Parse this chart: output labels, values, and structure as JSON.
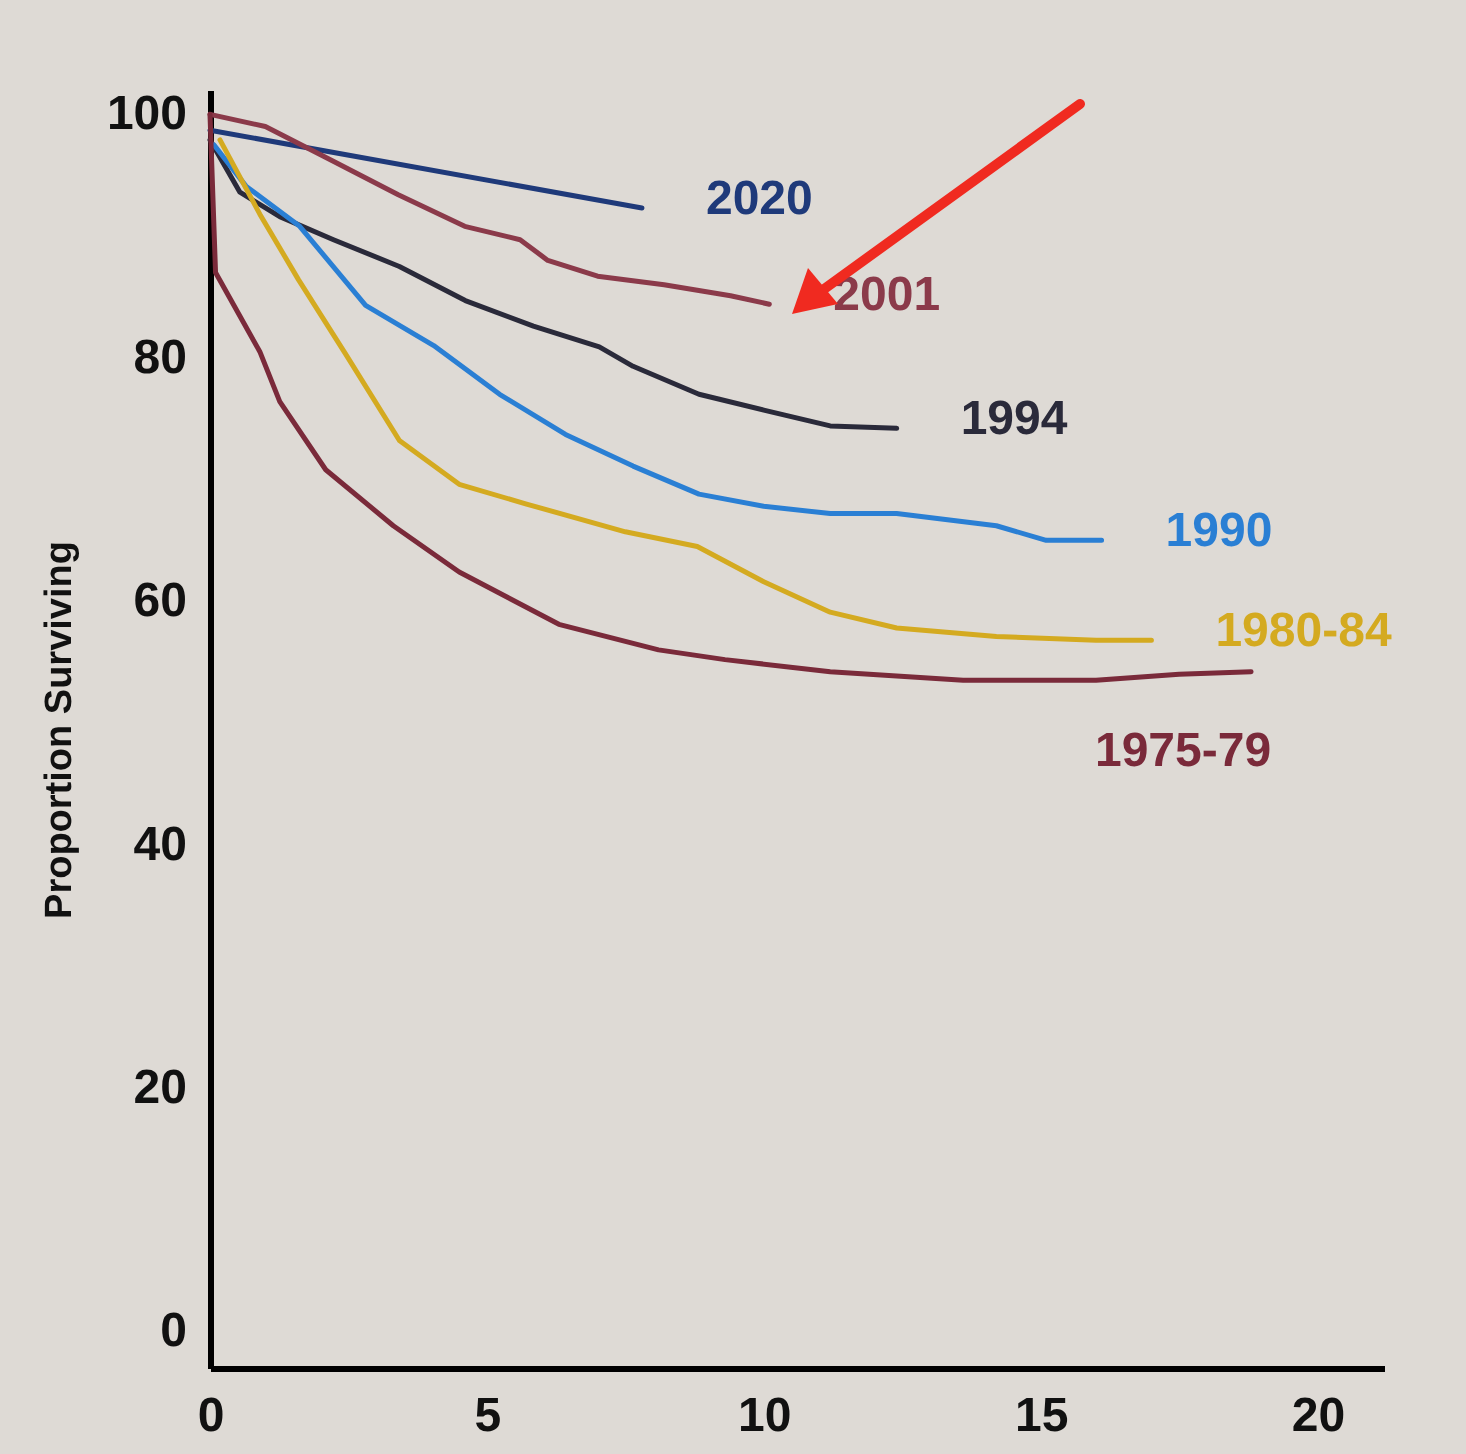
{
  "chart_data": {
    "type": "line",
    "ylabel": "Proportion Surviving",
    "xlim": [
      0,
      21.2
    ],
    "ylim": [
      -3,
      102
    ],
    "xticks": [
      0,
      5,
      10,
      15,
      20
    ],
    "yticks": [
      0,
      20,
      40,
      60,
      80,
      100
    ],
    "grid": false,
    "series": [
      {
        "name": "2020",
        "color": "#1f3a7a",
        "x": [
          0,
          7.8
        ],
        "values": [
          98.7,
          92.3
        ]
      },
      {
        "name": "2001",
        "color": "#8b3a4a",
        "x": [
          0,
          1.0,
          2.2,
          3.4,
          4.6,
          5.6,
          6.1,
          7.0,
          8.2,
          9.4,
          10.1
        ],
        "values": [
          100,
          99.0,
          96.2,
          93.4,
          90.8,
          89.7,
          88.0,
          86.7,
          86.0,
          85.1,
          84.4
        ]
      },
      {
        "name": "1994",
        "color": "#2a2a3a",
        "x": [
          0,
          0.54,
          1.26,
          2.23,
          3.42,
          4.61,
          5.84,
          7.03,
          7.64,
          8.83,
          10.0,
          11.2,
          12.4
        ],
        "values": [
          97.9,
          93.6,
          91.6,
          89.7,
          87.5,
          84.7,
          82.6,
          80.9,
          79.3,
          77.0,
          75.7,
          74.4,
          74.2
        ]
      },
      {
        "name": "1990",
        "color": "#2a7fd4",
        "x": [
          0.07,
          0.65,
          1.62,
          2.81,
          4.04,
          5.23,
          6.42,
          7.64,
          8.83,
          10.0,
          11.2,
          12.4,
          14.2,
          15.1,
          16.1
        ],
        "values": [
          97.5,
          94.1,
          90.8,
          84.3,
          81.0,
          77.0,
          73.7,
          71.1,
          68.8,
          67.8,
          67.2,
          67.2,
          66.2,
          65.0,
          65.0
        ]
      },
      {
        "name": "1980-84",
        "color": "#d4aa20",
        "x": [
          0.18,
          0.9,
          1.6,
          2.45,
          3.42,
          4.5,
          5.7,
          7.5,
          8.8,
          10.0,
          11.2,
          12.4,
          14.2,
          16.0,
          17.0
        ],
        "values": [
          97.9,
          91.8,
          86.4,
          80.3,
          73.2,
          69.6,
          68.0,
          65.7,
          64.5,
          61.6,
          59.1,
          57.8,
          57.1,
          56.8,
          56.8
        ]
      },
      {
        "name": "1975-79",
        "color": "#7a2a3a",
        "x": [
          0,
          0.1,
          0.9,
          1.26,
          2.09,
          3.31,
          4.5,
          6.3,
          8.1,
          9.3,
          11.2,
          13.6,
          16.0,
          17.5,
          18.8
        ],
        "values": [
          100,
          87,
          80.5,
          76.4,
          70.8,
          66.2,
          62.4,
          58.1,
          56.0,
          55.2,
          54.2,
          53.5,
          53.5,
          54.0,
          54.2
        ]
      }
    ]
  }
}
